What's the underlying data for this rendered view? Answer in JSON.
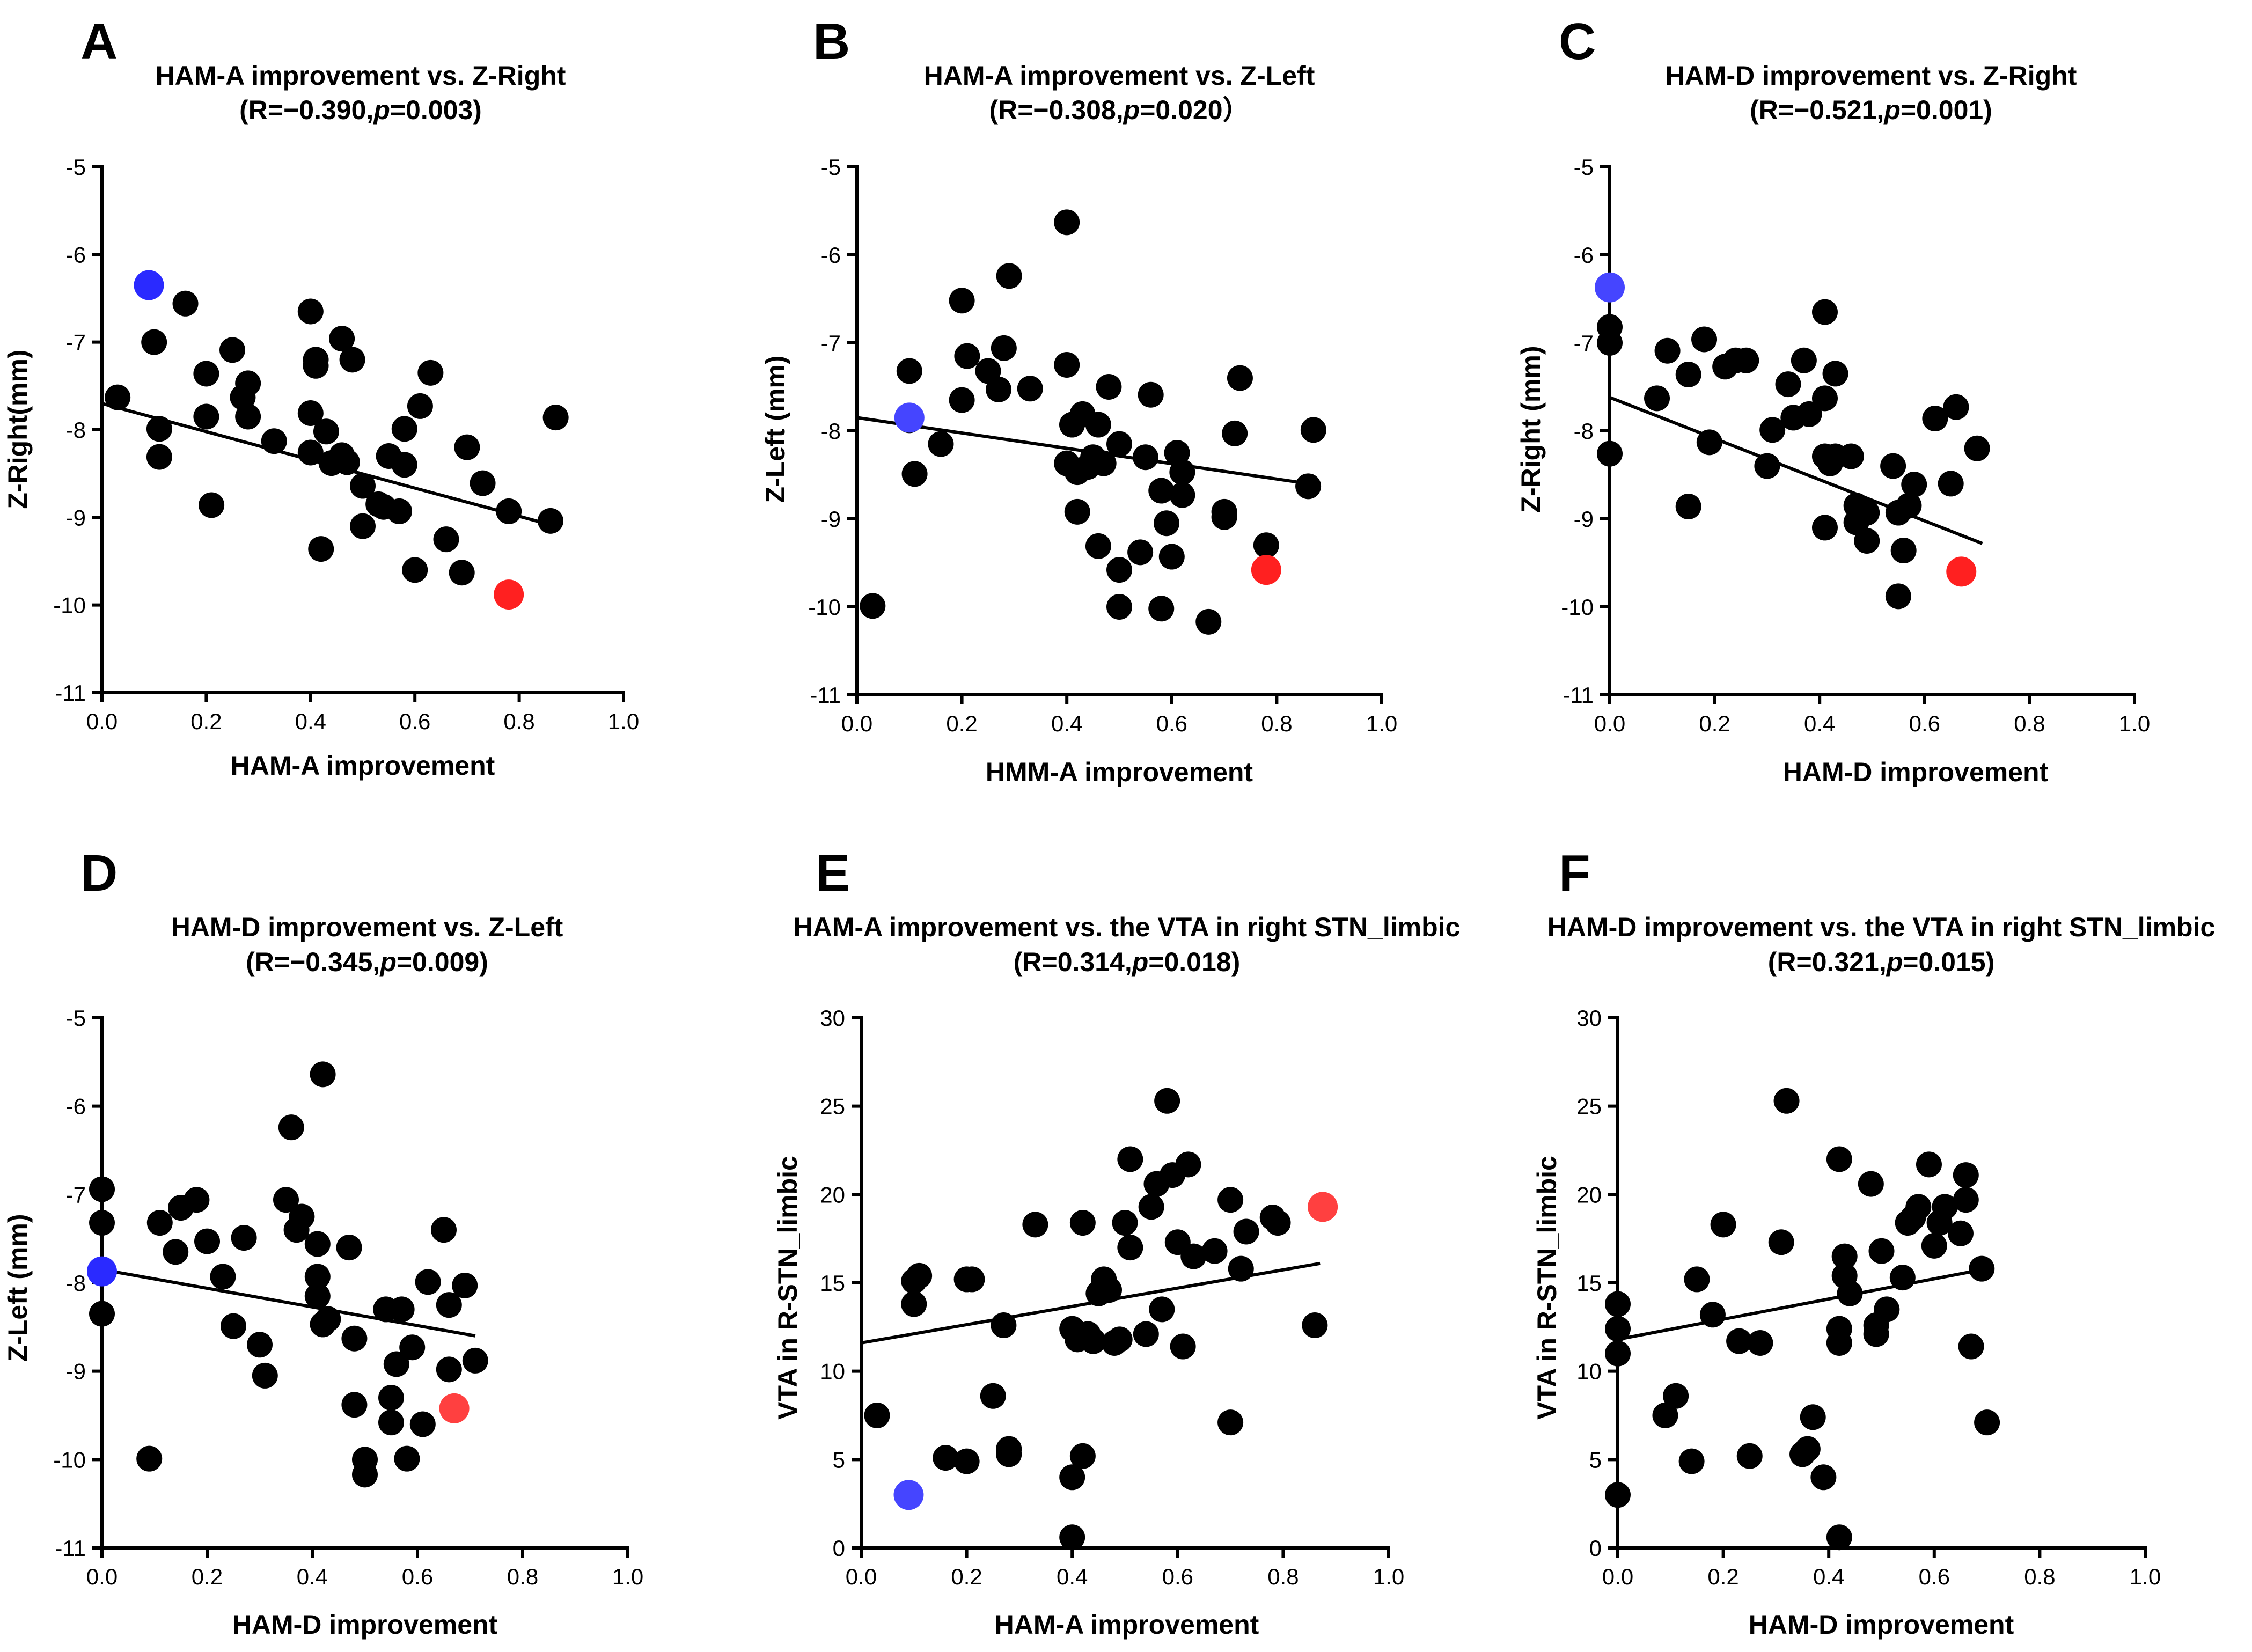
{
  "chart_data": [
    {
      "panel": "A",
      "type": "scatter",
      "title": "HAM-A improvement vs. Z-Right",
      "stats": {
        "prefix": "(R=−0.390,",
        "p_label": "p",
        "suffix": "=0.003)"
      },
      "xlabel": "HAM-A improvement",
      "ylabel": "Z-Right(mm)",
      "xlim": [
        0,
        1
      ],
      "ylim": [
        -11,
        -5
      ],
      "xticks": [
        "0.0",
        "0.2",
        "0.4",
        "0.6",
        "0.8",
        "1.0"
      ],
      "yticks": [
        "-5",
        "-6",
        "-7",
        "-8",
        "-9",
        "-10",
        "-11"
      ],
      "fit": {
        "x": [
          0,
          0.87
        ],
        "y": [
          -7.7,
          -9.1
        ]
      },
      "highlight": [
        {
          "x": 0.09,
          "y": -6.35,
          "color": "#2a2aff"
        },
        {
          "x": 0.78,
          "y": -9.88,
          "color": "#ff2020"
        }
      ],
      "points": [
        [
          0.03,
          -7.63
        ],
        [
          0.1,
          -7.0
        ],
        [
          0.11,
          -7.99
        ],
        [
          0.11,
          -8.31
        ],
        [
          0.16,
          -6.56
        ],
        [
          0.2,
          -7.36
        ],
        [
          0.2,
          -7.85
        ],
        [
          0.21,
          -8.86
        ],
        [
          0.25,
          -7.09
        ],
        [
          0.27,
          -7.63
        ],
        [
          0.28,
          -7.47
        ],
        [
          0.28,
          -7.85
        ],
        [
          0.33,
          -8.13
        ],
        [
          0.4,
          -6.65
        ],
        [
          0.4,
          -7.81
        ],
        [
          0.4,
          -8.26
        ],
        [
          0.41,
          -7.27
        ],
        [
          0.41,
          -7.2
        ],
        [
          0.42,
          -9.36
        ],
        [
          0.43,
          -8.02
        ],
        [
          0.44,
          -8.38
        ],
        [
          0.46,
          -6.96
        ],
        [
          0.46,
          -8.29
        ],
        [
          0.47,
          -8.37
        ],
        [
          0.48,
          -7.2
        ],
        [
          0.5,
          -8.64
        ],
        [
          0.5,
          -9.1
        ],
        [
          0.53,
          -8.85
        ],
        [
          0.54,
          -8.88
        ],
        [
          0.55,
          -8.3
        ],
        [
          0.57,
          -8.93
        ],
        [
          0.58,
          -8.4
        ],
        [
          0.58,
          -7.99
        ],
        [
          0.6,
          -9.6
        ],
        [
          0.61,
          -7.73
        ],
        [
          0.63,
          -7.35
        ],
        [
          0.66,
          -9.25
        ],
        [
          0.69,
          -9.63
        ],
        [
          0.7,
          -8.2
        ],
        [
          0.73,
          -8.61
        ],
        [
          0.78,
          -8.93
        ],
        [
          0.86,
          -9.04
        ],
        [
          0.87,
          -7.86
        ]
      ]
    },
    {
      "panel": "B",
      "type": "scatter",
      "title": "HAM-A improvement vs. Z-Left",
      "stats": {
        "prefix": "(R=−0.308,",
        "p_label": "p",
        "suffix": "=0.020）"
      },
      "xlabel": "HMM-A improvement",
      "ylabel": "Z-Left (mm)",
      "xlim": [
        0,
        1
      ],
      "ylim": [
        -11,
        -5
      ],
      "xticks": [
        "0.0",
        "0.2",
        "0.4",
        "0.6",
        "0.8",
        "1.0"
      ],
      "yticks": [
        "-5",
        "-6",
        "-7",
        "-8",
        "-9",
        "-10",
        "-11"
      ],
      "fit": {
        "x": [
          0,
          0.86
        ],
        "y": [
          -7.85,
          -8.6
        ]
      },
      "highlight": [
        {
          "x": 0.1,
          "y": -7.85,
          "color": "#4545ff"
        },
        {
          "x": 0.78,
          "y": -9.58,
          "color": "#ff2020"
        }
      ],
      "points": [
        [
          0.03,
          -9.99
        ],
        [
          0.1,
          -7.32
        ],
        [
          0.1,
          -7.88
        ],
        [
          0.11,
          -8.49
        ],
        [
          0.16,
          -8.15
        ],
        [
          0.2,
          -6.52
        ],
        [
          0.2,
          -7.65
        ],
        [
          0.21,
          -7.15
        ],
        [
          0.25,
          -7.32
        ],
        [
          0.27,
          -7.53
        ],
        [
          0.28,
          -7.06
        ],
        [
          0.29,
          -6.24
        ],
        [
          0.33,
          -7.52
        ],
        [
          0.4,
          -5.63
        ],
        [
          0.4,
          -7.25
        ],
        [
          0.4,
          -8.37
        ],
        [
          0.41,
          -7.93
        ],
        [
          0.42,
          -8.92
        ],
        [
          0.42,
          -8.47
        ],
        [
          0.43,
          -7.81
        ],
        [
          0.44,
          -8.41
        ],
        [
          0.45,
          -8.3
        ],
        [
          0.46,
          -9.31
        ],
        [
          0.46,
          -7.93
        ],
        [
          0.47,
          -8.37
        ],
        [
          0.48,
          -7.5
        ],
        [
          0.5,
          -8.15
        ],
        [
          0.5,
          -9.58
        ],
        [
          0.5,
          -10.0
        ],
        [
          0.54,
          -9.38
        ],
        [
          0.55,
          -8.3
        ],
        [
          0.56,
          -7.59
        ],
        [
          0.58,
          -10.02
        ],
        [
          0.58,
          -8.68
        ],
        [
          0.59,
          -9.05
        ],
        [
          0.6,
          -9.43
        ],
        [
          0.61,
          -8.25
        ],
        [
          0.62,
          -8.73
        ],
        [
          0.62,
          -8.47
        ],
        [
          0.67,
          -10.17
        ],
        [
          0.7,
          -8.92
        ],
        [
          0.7,
          -8.98
        ],
        [
          0.72,
          -8.03
        ],
        [
          0.73,
          -7.4
        ],
        [
          0.78,
          -9.3
        ],
        [
          0.86,
          -8.63
        ],
        [
          0.87,
          -7.99
        ]
      ]
    },
    {
      "panel": "C",
      "type": "scatter",
      "title": "HAM-D improvement vs. Z-Right",
      "stats": {
        "prefix": "(R=−0.521,",
        "p_label": "p",
        "suffix": "=0.001)"
      },
      "xlabel": "HAM-D improvement",
      "ylabel": "Z-Right (mm)",
      "xlim": [
        0,
        1
      ],
      "ylim": [
        -11,
        -5
      ],
      "xticks": [
        "0.0",
        "0.2",
        "0.4",
        "0.6",
        "0.8",
        "1.0"
      ],
      "yticks": [
        "-5",
        "-6",
        "-7",
        "-8",
        "-9",
        "-10",
        "-11"
      ],
      "fit": {
        "x": [
          0,
          0.71
        ],
        "y": [
          -7.62,
          -9.28
        ]
      },
      "highlight": [
        {
          "x": 0.0,
          "y": -6.37,
          "color": "#4545ff"
        },
        {
          "x": 0.67,
          "y": -9.6,
          "color": "#ff2020"
        }
      ],
      "points": [
        [
          0.0,
          -6.82
        ],
        [
          0.0,
          -7.0
        ],
        [
          0.0,
          -8.26
        ],
        [
          0.09,
          -7.63
        ],
        [
          0.11,
          -7.09
        ],
        [
          0.15,
          -7.36
        ],
        [
          0.15,
          -8.86
        ],
        [
          0.18,
          -6.96
        ],
        [
          0.19,
          -8.13
        ],
        [
          0.22,
          -7.27
        ],
        [
          0.24,
          -7.2
        ],
        [
          0.26,
          -7.2
        ],
        [
          0.3,
          -8.4
        ],
        [
          0.31,
          -7.99
        ],
        [
          0.34,
          -7.47
        ],
        [
          0.35,
          -7.85
        ],
        [
          0.37,
          -7.2
        ],
        [
          0.38,
          -7.81
        ],
        [
          0.41,
          -8.29
        ],
        [
          0.41,
          -6.65
        ],
        [
          0.41,
          -7.63
        ],
        [
          0.41,
          -9.1
        ],
        [
          0.42,
          -8.37
        ],
        [
          0.43,
          -7.35
        ],
        [
          0.43,
          -8.29
        ],
        [
          0.46,
          -8.29
        ],
        [
          0.47,
          -8.85
        ],
        [
          0.47,
          -9.04
        ],
        [
          0.49,
          -9.25
        ],
        [
          0.49,
          -8.93
        ],
        [
          0.54,
          -8.4
        ],
        [
          0.55,
          -9.88
        ],
        [
          0.55,
          -8.93
        ],
        [
          0.56,
          -9.36
        ],
        [
          0.57,
          -8.85
        ],
        [
          0.58,
          -8.61
        ],
        [
          0.62,
          -7.86
        ],
        [
          0.65,
          -8.6
        ],
        [
          0.66,
          -7.73
        ],
        [
          0.7,
          -8.2
        ]
      ]
    },
    {
      "panel": "D",
      "type": "scatter",
      "title": "HAM-D improvement vs. Z-Left",
      "stats": {
        "prefix": "(R=−0.345,",
        "p_label": "p",
        "suffix": "=0.009)"
      },
      "xlabel": "HAM-D improvement",
      "ylabel": "Z-Left (mm)",
      "xlim": [
        0,
        1
      ],
      "ylim": [
        -11,
        -5
      ],
      "xticks": [
        "0.0",
        "0.2",
        "0.4",
        "0.6",
        "0.8",
        "1.0"
      ],
      "yticks": [
        "-5",
        "-6",
        "-7",
        "-8",
        "-9",
        "-10",
        "-11"
      ],
      "fit": {
        "x": [
          0,
          0.71
        ],
        "y": [
          -7.85,
          -8.6
        ]
      },
      "highlight": [
        {
          "x": 0.0,
          "y": -7.87,
          "color": "#2a2aff"
        },
        {
          "x": 0.67,
          "y": -9.42,
          "color": "#ff4040"
        }
      ],
      "points": [
        [
          0.0,
          -6.94
        ],
        [
          0.0,
          -7.32
        ],
        [
          0.0,
          -8.35
        ],
        [
          0.09,
          -9.99
        ],
        [
          0.11,
          -7.32
        ],
        [
          0.14,
          -7.65
        ],
        [
          0.15,
          -7.15
        ],
        [
          0.18,
          -7.06
        ],
        [
          0.2,
          -7.53
        ],
        [
          0.23,
          -7.93
        ],
        [
          0.25,
          -8.49
        ],
        [
          0.27,
          -7.49
        ],
        [
          0.3,
          -8.7
        ],
        [
          0.31,
          -9.05
        ],
        [
          0.35,
          -7.06
        ],
        [
          0.36,
          -6.24
        ],
        [
          0.37,
          -7.4
        ],
        [
          0.38,
          -7.25
        ],
        [
          0.41,
          -7.93
        ],
        [
          0.41,
          -7.56
        ],
        [
          0.41,
          -8.15
        ],
        [
          0.42,
          -5.64
        ],
        [
          0.42,
          -8.47
        ],
        [
          0.43,
          -8.41
        ],
        [
          0.47,
          -7.6
        ],
        [
          0.48,
          -8.63
        ],
        [
          0.48,
          -9.38
        ],
        [
          0.5,
          -10.0
        ],
        [
          0.5,
          -10.17
        ],
        [
          0.54,
          -8.3
        ],
        [
          0.55,
          -9.58
        ],
        [
          0.55,
          -9.3
        ],
        [
          0.56,
          -8.92
        ],
        [
          0.57,
          -8.3
        ],
        [
          0.58,
          -9.99
        ],
        [
          0.59,
          -8.73
        ],
        [
          0.61,
          -9.6
        ],
        [
          0.62,
          -7.99
        ],
        [
          0.65,
          -7.4
        ],
        [
          0.66,
          -8.98
        ],
        [
          0.66,
          -8.25
        ],
        [
          0.69,
          -8.03
        ],
        [
          0.71,
          -8.88
        ]
      ]
    },
    {
      "panel": "E",
      "type": "scatter",
      "title": "HAM-A improvement vs. the VTA in right STN_limbic",
      "stats": {
        "prefix": "(R=0.314,",
        "p_label": "p",
        "suffix": "=0.018)"
      },
      "xlabel": "HAM-A improvement",
      "ylabel": "VTA in R-STN_limbic",
      "xlim": [
        0,
        1
      ],
      "ylim": [
        0,
        30
      ],
      "xticks": [
        "0.0",
        "0.2",
        "0.4",
        "0.6",
        "0.8",
        "1.0"
      ],
      "yticks": [
        "30",
        "25",
        "20",
        "15",
        "10",
        "5",
        "0"
      ],
      "fit": {
        "x": [
          0,
          0.87
        ],
        "y": [
          11.6,
          16.1
        ]
      },
      "highlight": [
        {
          "x": 0.09,
          "y": 3.0,
          "color": "#4545ff"
        },
        {
          "x": 0.875,
          "y": 19.3,
          "color": "#ff4040"
        }
      ],
      "points": [
        [
          0.03,
          7.5
        ],
        [
          0.1,
          13.8
        ],
        [
          0.1,
          15.1
        ],
        [
          0.11,
          15.4
        ],
        [
          0.16,
          5.1
        ],
        [
          0.2,
          4.9
        ],
        [
          0.2,
          15.2
        ],
        [
          0.21,
          15.2
        ],
        [
          0.25,
          8.6
        ],
        [
          0.27,
          12.6
        ],
        [
          0.28,
          5.6
        ],
        [
          0.28,
          5.3
        ],
        [
          0.33,
          18.3
        ],
        [
          0.4,
          0.6
        ],
        [
          0.4,
          4.0
        ],
        [
          0.4,
          12.4
        ],
        [
          0.41,
          11.8
        ],
        [
          0.42,
          18.4
        ],
        [
          0.42,
          5.2
        ],
        [
          0.43,
          12.1
        ],
        [
          0.44,
          11.7
        ],
        [
          0.45,
          14.4
        ],
        [
          0.46,
          15.2
        ],
        [
          0.47,
          14.6
        ],
        [
          0.48,
          11.6
        ],
        [
          0.49,
          11.8
        ],
        [
          0.5,
          18.4
        ],
        [
          0.51,
          22.0
        ],
        [
          0.51,
          17.0
        ],
        [
          0.54,
          12.1
        ],
        [
          0.55,
          19.3
        ],
        [
          0.56,
          20.6
        ],
        [
          0.57,
          13.5
        ],
        [
          0.58,
          25.3
        ],
        [
          0.59,
          21.1
        ],
        [
          0.6,
          17.3
        ],
        [
          0.61,
          11.4
        ],
        [
          0.62,
          21.7
        ],
        [
          0.63,
          16.5
        ],
        [
          0.67,
          16.8
        ],
        [
          0.7,
          19.7
        ],
        [
          0.7,
          7.1
        ],
        [
          0.72,
          15.8
        ],
        [
          0.73,
          17.9
        ],
        [
          0.78,
          18.7
        ],
        [
          0.79,
          18.4
        ],
        [
          0.86,
          12.6
        ]
      ]
    },
    {
      "panel": "F",
      "type": "scatter",
      "title": "HAM-D improvement vs. the VTA in right STN_limbic",
      "stats": {
        "prefix": "(R=0.321,",
        "p_label": "p",
        "suffix": "=0.015)"
      },
      "xlabel": "HAM-D improvement",
      "ylabel": "VTA in R-STN_limbic",
      "xlim": [
        0,
        1
      ],
      "ylim": [
        0,
        30
      ],
      "xticks": [
        "0.0",
        "0.2",
        "0.4",
        "0.6",
        "0.8",
        "1.0"
      ],
      "yticks": [
        "30",
        "25",
        "20",
        "15",
        "10",
        "5",
        "0"
      ],
      "fit": {
        "x": [
          0,
          0.7
        ],
        "y": [
          11.8,
          15.8
        ]
      },
      "highlight": [],
      "points": [
        [
          0.0,
          13.8
        ],
        [
          0.0,
          12.4
        ],
        [
          0.0,
          11.0
        ],
        [
          0.0,
          3.0
        ],
        [
          0.09,
          7.5
        ],
        [
          0.11,
          8.6
        ],
        [
          0.14,
          4.9
        ],
        [
          0.15,
          15.2
        ],
        [
          0.18,
          13.2
        ],
        [
          0.2,
          18.3
        ],
        [
          0.23,
          11.7
        ],
        [
          0.25,
          5.2
        ],
        [
          0.27,
          11.6
        ],
        [
          0.31,
          17.3
        ],
        [
          0.32,
          25.3
        ],
        [
          0.35,
          5.3
        ],
        [
          0.36,
          5.6
        ],
        [
          0.37,
          7.4
        ],
        [
          0.39,
          4.0
        ],
        [
          0.42,
          0.6
        ],
        [
          0.42,
          11.6
        ],
        [
          0.42,
          12.4
        ],
        [
          0.42,
          22.0
        ],
        [
          0.43,
          15.4
        ],
        [
          0.43,
          16.5
        ],
        [
          0.44,
          14.4
        ],
        [
          0.48,
          20.6
        ],
        [
          0.49,
          12.1
        ],
        [
          0.49,
          12.6
        ],
        [
          0.5,
          16.8
        ],
        [
          0.51,
          13.5
        ],
        [
          0.54,
          15.3
        ],
        [
          0.55,
          18.4
        ],
        [
          0.56,
          18.7
        ],
        [
          0.57,
          19.3
        ],
        [
          0.59,
          21.7
        ],
        [
          0.6,
          17.1
        ],
        [
          0.61,
          18.4
        ],
        [
          0.62,
          19.3
        ],
        [
          0.65,
          17.8
        ],
        [
          0.66,
          21.1
        ],
        [
          0.66,
          19.7
        ],
        [
          0.67,
          11.4
        ],
        [
          0.69,
          15.8
        ],
        [
          0.7,
          7.1
        ]
      ]
    }
  ]
}
